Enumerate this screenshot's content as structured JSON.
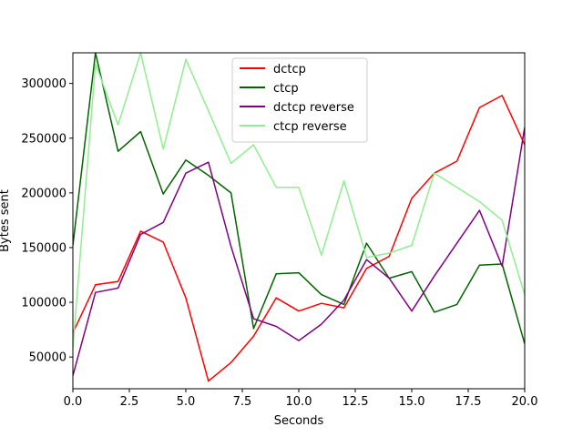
{
  "chart_data": {
    "type": "line",
    "title": "",
    "xlabel": "Seconds",
    "ylabel": "Bytes sent",
    "xlim": [
      0,
      20
    ],
    "ylim": [
      21000,
      328000
    ],
    "xticks": [
      0.0,
      2.5,
      5.0,
      7.5,
      10.0,
      12.5,
      15.0,
      17.5,
      20.0
    ],
    "xtick_labels": [
      "0.0",
      "2.5",
      "5.0",
      "7.5",
      "10.0",
      "12.5",
      "15.0",
      "17.5",
      "20.0"
    ],
    "yticks": [
      50000,
      100000,
      150000,
      200000,
      250000,
      300000
    ],
    "ytick_labels": [
      "50000",
      "100000",
      "150000",
      "200000",
      "250000",
      "300000"
    ],
    "grid": false,
    "legend_position": "top-center",
    "x": [
      0,
      1,
      2,
      3,
      4,
      5,
      6,
      7,
      8,
      9,
      10,
      11,
      12,
      13,
      14,
      15,
      16,
      17,
      18,
      19,
      20
    ],
    "series": [
      {
        "name": "dctcp",
        "color": "#ff0000",
        "values": [
          72000,
          116000,
          119000,
          165000,
          155000,
          104000,
          28000,
          45000,
          69000,
          104000,
          92000,
          99000,
          95000,
          131000,
          142000,
          195000,
          218000,
          229000,
          278000,
          289000,
          244000
        ]
      },
      {
        "name": "ctcp",
        "color": "#006400",
        "values": [
          152000,
          328000,
          238000,
          256000,
          199000,
          230000,
          216000,
          200000,
          76000,
          126000,
          127000,
          107000,
          98000,
          154000,
          122000,
          128000,
          91000,
          98000,
          134000,
          135000,
          62000
        ]
      },
      {
        "name": "dctcp reverse",
        "color": "#800080",
        "values": [
          33000,
          109000,
          113000,
          162000,
          173000,
          218000,
          228000,
          151000,
          85000,
          78000,
          65000,
          80000,
          102000,
          139000,
          122000,
          92000,
          124000,
          154000,
          184000,
          133000,
          260000
        ]
      },
      {
        "name": "ctcp reverse",
        "color": "#90ee90",
        "values": [
          58000,
          318000,
          262000,
          328000,
          240000,
          322000,
          275000,
          227000,
          244000,
          205000,
          205000,
          143000,
          211000,
          141000,
          145000,
          152000,
          218000,
          205000,
          192000,
          175000,
          107000
        ]
      }
    ]
  }
}
